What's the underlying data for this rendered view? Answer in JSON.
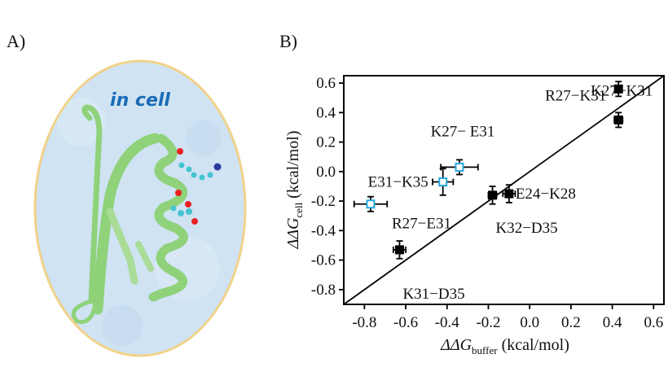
{
  "panel_a": {
    "label": "A)",
    "caption": "in cell",
    "caption_color": "#1a6bb5",
    "border_color": "#f0d28a",
    "background_color": "#cfe3f3",
    "protein_color": "#8fd27a"
  },
  "panel_b": {
    "label": "B)"
  },
  "chart_data": {
    "type": "scatter",
    "xlabel_main": "ΔΔG",
    "xlabel_sub": "buffer",
    "xlabel_unit": " (kcal/mol)",
    "ylabel_main": "ΔΔG",
    "ylabel_sub": "cell",
    "ylabel_unit": " (kcal/mol)",
    "xlim": [
      -0.9,
      0.65
    ],
    "ylim": [
      -0.9,
      0.65
    ],
    "xticks": [
      "-0.8",
      "-0.6",
      "-0.4",
      "-0.2",
      "0.0",
      "0.2",
      "0.4",
      "0.6"
    ],
    "yticks": [
      "0.6",
      "0.4",
      "0.2",
      "0.0",
      "-0.2",
      "-0.4",
      "-0.6",
      "-0.8"
    ],
    "grid": false,
    "reference_line": "y = x",
    "marker_colors": {
      "filled": "#000000",
      "open_fill": "#ffffff",
      "open_edge": "#29a9e0"
    },
    "points": [
      {
        "label": "R27−K31",
        "x": 0.43,
        "y": 0.56,
        "xerr": 0.015,
        "yerr": 0.05,
        "style": "filled"
      },
      {
        "label": "K27−K31",
        "x": 0.43,
        "y": 0.35,
        "xerr": 0.02,
        "yerr": 0.05,
        "style": "filled"
      },
      {
        "label": "K27− E31",
        "x": -0.34,
        "y": 0.03,
        "xerr": 0.09,
        "yerr": 0.05,
        "style": "open"
      },
      {
        "label": "E31−K35",
        "x": -0.42,
        "y": -0.07,
        "xerr": 0.05,
        "yerr": 0.09,
        "style": "open"
      },
      {
        "label": "R27−E31",
        "x": -0.77,
        "y": -0.22,
        "xerr": 0.08,
        "yerr": 0.05,
        "style": "open"
      },
      {
        "label": "K32−D35",
        "x": -0.18,
        "y": -0.16,
        "xerr": 0.02,
        "yerr": 0.06,
        "style": "filled"
      },
      {
        "label": "E24−K28",
        "x": -0.1,
        "y": -0.15,
        "xerr": 0.03,
        "yerr": 0.06,
        "style": "filled"
      },
      {
        "label": "K31−D35",
        "x": -0.63,
        "y": -0.53,
        "xerr": 0.03,
        "yerr": 0.06,
        "style": "filled"
      }
    ]
  }
}
